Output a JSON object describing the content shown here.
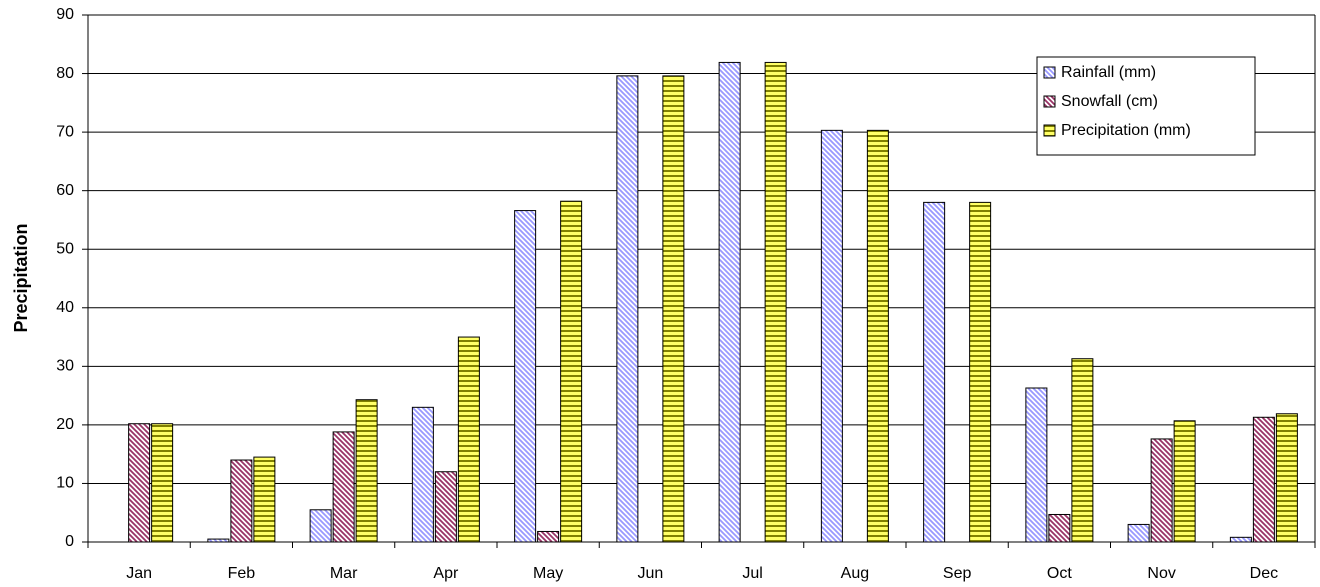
{
  "chart_data": {
    "type": "bar",
    "y_label": "Precipitation",
    "categories": [
      "Jan",
      "Feb",
      "Mar",
      "Apr",
      "May",
      "Jun",
      "Jul",
      "Aug",
      "Sep",
      "Oct",
      "Nov",
      "Dec"
    ],
    "series": [
      {
        "name": "Rainfall (mm)",
        "color": "#9999ff",
        "pattern": "diagonal",
        "values": [
          0,
          0.5,
          5.5,
          23,
          56.6,
          79.6,
          81.9,
          70.3,
          58,
          26.3,
          3,
          0.8
        ]
      },
      {
        "name": "Snowfall (cm)",
        "color": "#993366",
        "pattern": "diagonal",
        "values": [
          20.2,
          14,
          18.8,
          12,
          1.8,
          0,
          0,
          0,
          0,
          4.7,
          17.6,
          21.3
        ]
      },
      {
        "name": "Precipitation (mm)",
        "color": "#ffff66",
        "pattern": "horizontal",
        "values": [
          20.2,
          14.5,
          24.3,
          35,
          58.2,
          79.6,
          81.9,
          70.3,
          58,
          31.3,
          20.7,
          21.9
        ]
      }
    ],
    "ylim": [
      0,
      90
    ],
    "yticks": [
      0,
      10,
      20,
      30,
      40,
      50,
      60,
      70,
      80,
      90
    ],
    "grid": true,
    "legend": "upper right"
  }
}
